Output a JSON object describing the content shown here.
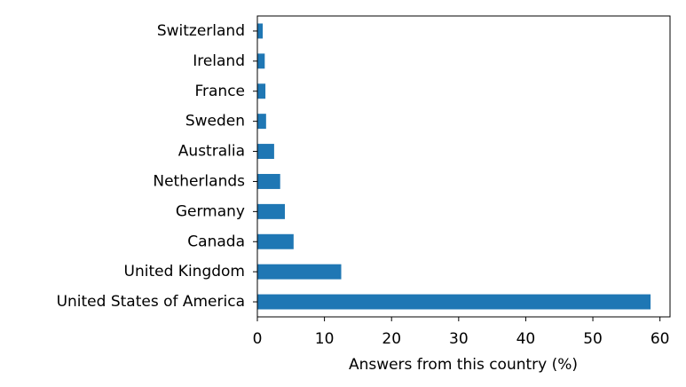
{
  "chart_data": {
    "type": "bar",
    "orientation": "horizontal",
    "categories": [
      "United States of America",
      "United Kingdom",
      "Canada",
      "Germany",
      "Netherlands",
      "Australia",
      "Sweden",
      "France",
      "Ireland",
      "Switzerland"
    ],
    "values": [
      58.6,
      12.5,
      5.4,
      4.1,
      3.4,
      2.5,
      1.3,
      1.2,
      1.1,
      0.8
    ],
    "xlabel": "Answers from this country (%)",
    "ylabel": "",
    "xlim": [
      0,
      61.5
    ],
    "xticks": [
      0,
      10,
      20,
      30,
      40,
      50,
      60
    ],
    "grid": false,
    "legend": "none",
    "bar_color": "#1f77b4"
  }
}
